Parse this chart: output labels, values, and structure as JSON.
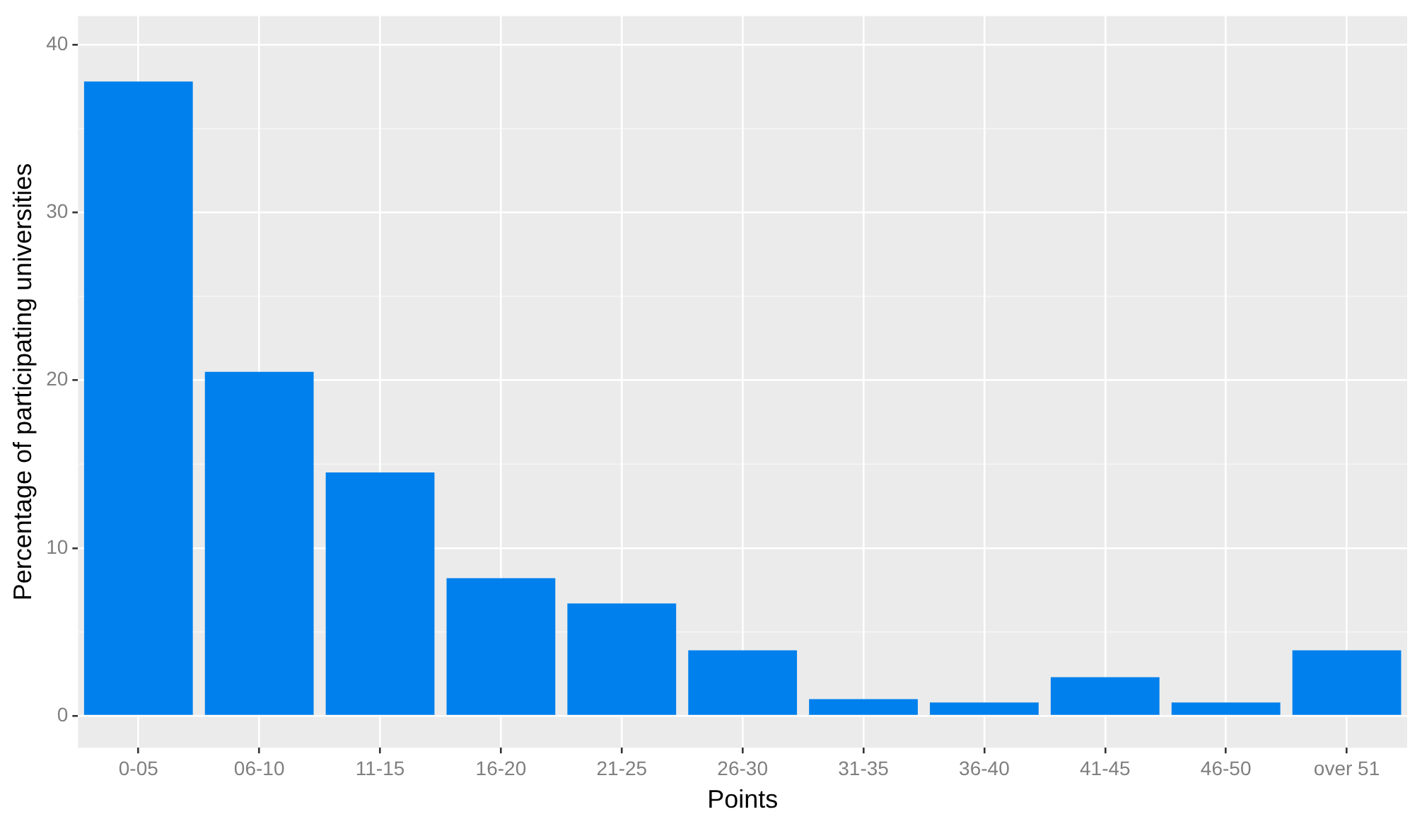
{
  "chart_data": {
    "type": "bar",
    "xlabel": "Points",
    "ylabel": "Percentage of participating universities",
    "categories": [
      "0-05",
      "06-10",
      "11-15",
      "16-20",
      "21-25",
      "26-30",
      "31-35",
      "36-40",
      "41-45",
      "46-50",
      "over 51"
    ],
    "values": [
      37.8,
      20.5,
      14.5,
      8.2,
      6.7,
      3.9,
      1.0,
      0.8,
      2.3,
      0.8,
      3.9
    ],
    "color": "#0080ec",
    "ylim": [
      -1.9,
      41.7
    ],
    "yticks": [
      0,
      10,
      20,
      30,
      40
    ],
    "grid": true,
    "legend": false
  }
}
